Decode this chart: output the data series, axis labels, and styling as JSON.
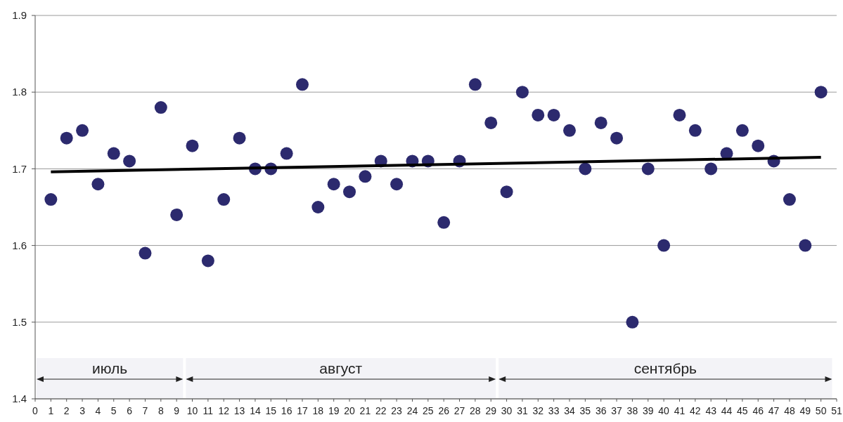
{
  "chart_data": {
    "type": "scatter",
    "x": [
      1,
      2,
      3,
      4,
      5,
      6,
      7,
      8,
      9,
      10,
      11,
      12,
      13,
      14,
      15,
      16,
      17,
      18,
      19,
      20,
      21,
      22,
      23,
      24,
      25,
      26,
      27,
      28,
      29,
      30,
      31,
      32,
      33,
      34,
      35,
      36,
      37,
      38,
      39,
      40,
      41,
      42,
      43,
      44,
      45,
      46,
      47,
      48,
      49,
      50
    ],
    "series": [
      {
        "color": "#2c2a6e",
        "marker": "circle",
        "values": [
          1.66,
          1.74,
          1.75,
          1.68,
          1.72,
          1.71,
          1.59,
          1.78,
          1.64,
          1.73,
          1.58,
          1.66,
          1.74,
          1.7,
          1.7,
          1.72,
          1.81,
          1.65,
          1.68,
          1.67,
          1.69,
          1.71,
          1.68,
          1.71,
          1.71,
          1.63,
          1.71,
          1.81,
          1.76,
          1.67,
          1.8,
          1.77,
          1.77,
          1.75,
          1.7,
          1.76,
          1.74,
          1.5,
          1.7,
          1.6,
          1.77,
          1.75,
          1.7,
          1.72,
          1.75,
          1.73,
          1.71,
          1.66,
          1.6,
          1.8
        ]
      },
      {
        "type": "line",
        "color": "#000000",
        "x": [
          1,
          50
        ],
        "values": [
          1.696,
          1.715
        ]
      }
    ],
    "xlim": [
      0,
      51
    ],
    "xticks": [
      0,
      1,
      2,
      3,
      4,
      5,
      6,
      7,
      8,
      9,
      10,
      11,
      12,
      13,
      14,
      15,
      16,
      17,
      18,
      19,
      20,
      21,
      22,
      23,
      24,
      25,
      26,
      27,
      28,
      29,
      30,
      31,
      32,
      33,
      34,
      35,
      36,
      37,
      38,
      39,
      40,
      41,
      42,
      43,
      44,
      45,
      46,
      47,
      48,
      49,
      50,
      51
    ],
    "ylim": [
      1.4,
      1.9
    ],
    "yticks": [
      1.4,
      1.5,
      1.6,
      1.7,
      1.8,
      1.9
    ],
    "grid": "y",
    "bands": [
      {
        "axis": "x",
        "from": 0,
        "to": 9.5,
        "label": "июль"
      },
      {
        "axis": "x",
        "from": 9.5,
        "to": 29.4,
        "label": "август"
      },
      {
        "axis": "x",
        "from": 29.4,
        "to": 50.8,
        "label": "сентябрь"
      }
    ]
  }
}
